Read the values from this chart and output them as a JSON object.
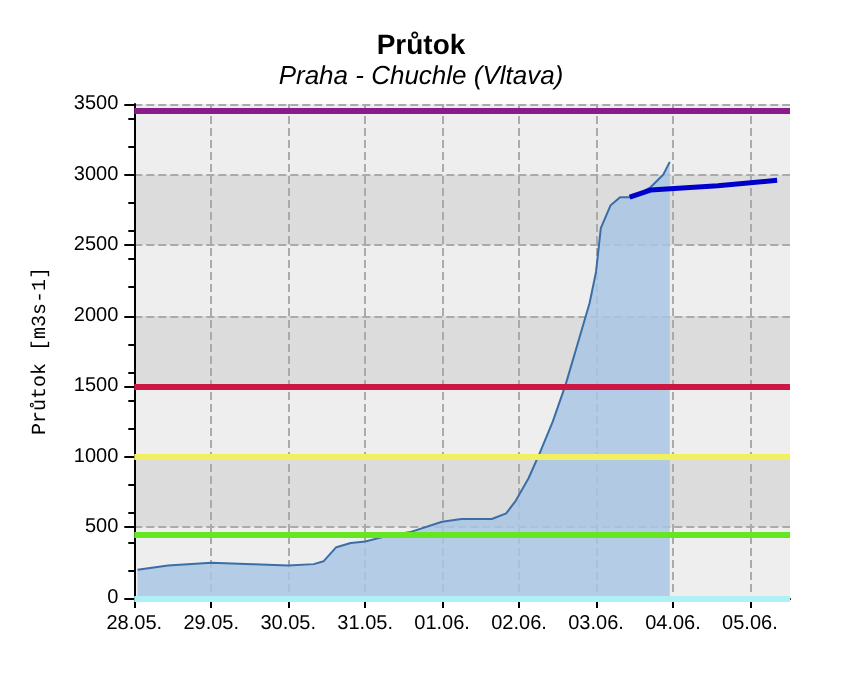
{
  "chart_data": {
    "type": "area",
    "title": "Průtok",
    "subtitle": "Praha - Chuchle (Vltava)",
    "ylabel": "Průtok [m3s-1]",
    "xlim": [
      "--05-28",
      "--06-05T12:30"
    ],
    "xticks": [
      {
        "value": "--05-28",
        "label": "28.05."
      },
      {
        "value": "--05-29",
        "label": "29.05."
      },
      {
        "value": "--05-30",
        "label": "30.05."
      },
      {
        "value": "--05-31",
        "label": "31.05."
      },
      {
        "value": "--06-01",
        "label": "01.06."
      },
      {
        "value": "--06-02",
        "label": "02.06."
      },
      {
        "value": "--06-03",
        "label": "03.06."
      },
      {
        "value": "--06-04",
        "label": "04.06."
      },
      {
        "value": "--06-05",
        "label": "05.06."
      }
    ],
    "ylim": [
      0,
      3500
    ],
    "yticks": [
      0,
      500,
      1000,
      1500,
      2000,
      2500,
      3000,
      3500
    ],
    "grid": true,
    "marker": "none",
    "series": [
      {
        "color": "#3a6ea5",
        "x": [
          "--05-28T01:00",
          "--05-28T10:30",
          "--05-29T00:00",
          "--05-29T13:00",
          "--05-30T00:00",
          "--05-30T08:00",
          "--05-30T11:00",
          "--05-30T15:00",
          "--05-30T19:30",
          "--05-31T00:00",
          "--05-31T07:00",
          "--05-31T14:30",
          "--06-01T00:00",
          "--06-01T06:00",
          "--06-01T15:30",
          "--06-01T20:00",
          "--06-01T23:00",
          "--06-02T03:00",
          "--06-02T06:30",
          "--06-02T10:30",
          "--06-02T14:30",
          "--06-02T18:00",
          "--06-02T22:00",
          "--06-03T00:00",
          "--06-03T01:30",
          "--06-03T04:30",
          "--06-03T07:30",
          "--06-03T11:30",
          "--06-03T17:00",
          "--06-03T21:00",
          "--06-03T23:00"
        ],
        "values": [
          200,
          230,
          250,
          240,
          230,
          240,
          260,
          360,
          390,
          400,
          440,
          470,
          540,
          560,
          560,
          600,
          690,
          850,
          1030,
          1250,
          1510,
          1780,
          2090,
          2310,
          2620,
          2780,
          2840,
          2840,
          2910,
          3000,
          3090
        ]
      },
      {
        "type": "line",
        "color": "#0000cc",
        "x": [
          "--06-03T10:30",
          "--06-03T17:00",
          "--06-04T14:00",
          "--06-05T08:30"
        ],
        "values": [
          2840,
          2890,
          2920,
          2960
        ]
      }
    ],
    "ref_lines": [
      {
        "axis": "y",
        "value": 3450,
        "color": "#8b1a8b"
      },
      {
        "axis": "y",
        "value": 1500,
        "color": "#cc1744"
      },
      {
        "axis": "y",
        "value": 1000,
        "color": "#f0f060"
      },
      {
        "axis": "y",
        "value": 450,
        "color": "#66e622"
      },
      {
        "axis": "y",
        "value": 0,
        "color": "#aef0f5"
      }
    ]
  }
}
